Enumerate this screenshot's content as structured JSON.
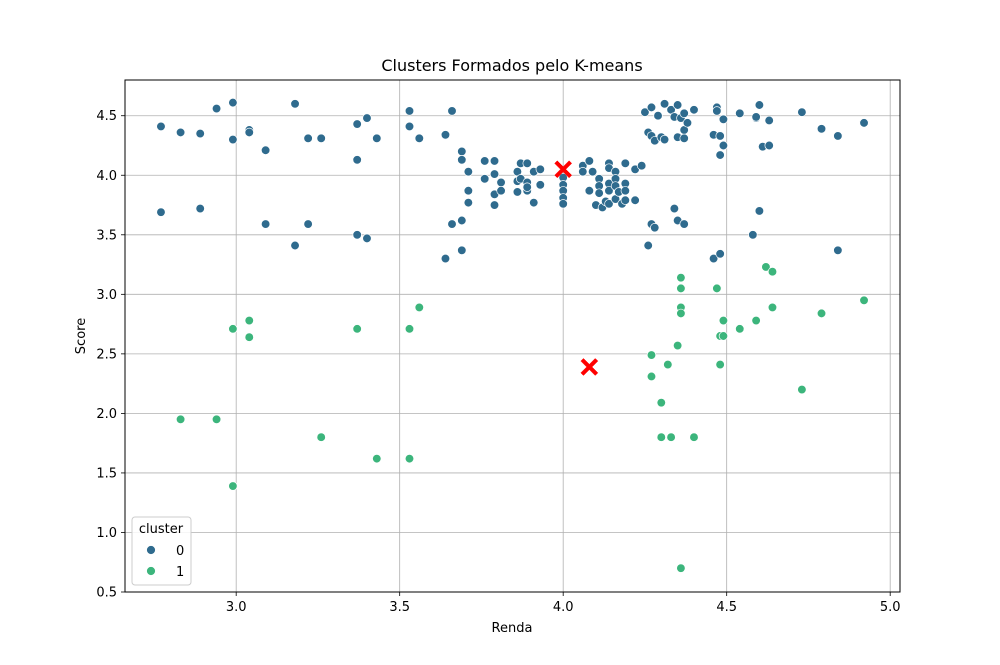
{
  "chart_data": {
    "type": "scatter",
    "title": "Clusters Formados pelo K-means",
    "xlabel": "Renda",
    "ylabel": "Score",
    "xlim": [
      2.66,
      5.03
    ],
    "ylim": [
      0.5,
      4.8
    ],
    "xticks": [
      "3.0",
      "3.5",
      "4.0",
      "4.5",
      "5.0"
    ],
    "yticks": [
      "0.5",
      "1.0",
      "1.5",
      "2.0",
      "2.5",
      "3.0",
      "3.5",
      "4.0",
      "4.5"
    ],
    "grid": true,
    "legend": {
      "title": "cluster",
      "placement": "lower-left"
    },
    "series": [
      {
        "name": "0",
        "color": "#2f6b8e",
        "points": [
          [
            2.77,
            4.41
          ],
          [
            2.83,
            4.36
          ],
          [
            2.89,
            4.35
          ],
          [
            2.94,
            4.56
          ],
          [
            2.99,
            4.61
          ],
          [
            2.99,
            4.3
          ],
          [
            3.04,
            4.38
          ],
          [
            3.04,
            4.36
          ],
          [
            3.09,
            4.21
          ],
          [
            3.18,
            4.6
          ],
          [
            3.22,
            4.31
          ],
          [
            3.26,
            4.31
          ],
          [
            3.37,
            4.43
          ],
          [
            3.4,
            4.48
          ],
          [
            3.37,
            4.13
          ],
          [
            3.43,
            4.31
          ],
          [
            3.53,
            4.54
          ],
          [
            3.53,
            4.41
          ],
          [
            3.56,
            4.31
          ],
          [
            3.64,
            4.34
          ],
          [
            3.66,
            4.54
          ],
          [
            2.77,
            3.69
          ],
          [
            2.89,
            3.72
          ],
          [
            3.09,
            3.59
          ],
          [
            3.18,
            3.41
          ],
          [
            3.22,
            3.59
          ],
          [
            3.37,
            3.5
          ],
          [
            3.4,
            3.47
          ],
          [
            3.64,
            3.3
          ],
          [
            3.66,
            3.59
          ],
          [
            3.69,
            3.62
          ],
          [
            3.69,
            3.37
          ],
          [
            3.69,
            4.2
          ],
          [
            3.69,
            4.13
          ],
          [
            3.71,
            4.03
          ],
          [
            3.71,
            3.87
          ],
          [
            3.71,
            3.77
          ],
          [
            3.76,
            4.12
          ],
          [
            3.76,
            3.97
          ],
          [
            3.79,
            4.12
          ],
          [
            3.79,
            4.01
          ],
          [
            3.79,
            3.84
          ],
          [
            3.79,
            3.75
          ],
          [
            3.81,
            3.94
          ],
          [
            3.81,
            3.87
          ],
          [
            3.86,
            4.03
          ],
          [
            3.86,
            3.95
          ],
          [
            3.86,
            3.86
          ],
          [
            3.87,
            4.1
          ],
          [
            3.87,
            3.97
          ],
          [
            3.89,
            4.1
          ],
          [
            3.89,
            3.94
          ],
          [
            3.89,
            3.87
          ],
          [
            3.89,
            3.9
          ],
          [
            3.91,
            4.03
          ],
          [
            3.91,
            3.77
          ],
          [
            3.93,
            4.05
          ],
          [
            3.93,
            3.92
          ],
          [
            4.0,
            3.98
          ],
          [
            4.0,
            3.92
          ],
          [
            4.0,
            3.87
          ],
          [
            4.0,
            3.81
          ],
          [
            4.0,
            3.76
          ],
          [
            4.06,
            4.08
          ],
          [
            4.06,
            4.03
          ],
          [
            4.08,
            4.12
          ],
          [
            4.08,
            3.87
          ],
          [
            4.09,
            4.03
          ],
          [
            4.1,
            3.75
          ],
          [
            4.11,
            3.97
          ],
          [
            4.11,
            3.91
          ],
          [
            4.11,
            3.85
          ],
          [
            4.12,
            3.73
          ],
          [
            4.13,
            3.78
          ],
          [
            4.14,
            4.1
          ],
          [
            4.14,
            4.06
          ],
          [
            4.14,
            3.93
          ],
          [
            4.14,
            3.87
          ],
          [
            4.14,
            3.76
          ],
          [
            4.16,
            4.03
          ],
          [
            4.16,
            3.97
          ],
          [
            4.16,
            3.91
          ],
          [
            4.16,
            3.8
          ],
          [
            4.17,
            3.86
          ],
          [
            4.18,
            3.76
          ],
          [
            4.19,
            4.1
          ],
          [
            4.19,
            3.93
          ],
          [
            4.19,
            3.87
          ],
          [
            4.19,
            3.79
          ],
          [
            4.22,
            4.05
          ],
          [
            4.22,
            3.79
          ],
          [
            4.24,
            4.08
          ],
          [
            4.25,
            4.53
          ],
          [
            4.26,
            4.36
          ],
          [
            4.27,
            4.57
          ],
          [
            4.27,
            4.33
          ],
          [
            4.28,
            4.29
          ],
          [
            4.29,
            4.5
          ],
          [
            4.3,
            4.32
          ],
          [
            4.31,
            4.6
          ],
          [
            4.31,
            4.3
          ],
          [
            4.33,
            4.55
          ],
          [
            4.34,
            4.49
          ],
          [
            4.35,
            4.59
          ],
          [
            4.35,
            4.32
          ],
          [
            4.36,
            4.48
          ],
          [
            4.37,
            4.52
          ],
          [
            4.37,
            4.38
          ],
          [
            4.37,
            4.31
          ],
          [
            4.38,
            4.44
          ],
          [
            4.4,
            4.55
          ],
          [
            4.46,
            4.34
          ],
          [
            4.47,
            4.57
          ],
          [
            4.47,
            4.54
          ],
          [
            4.48,
            4.33
          ],
          [
            4.48,
            4.17
          ],
          [
            4.49,
            4.47
          ],
          [
            4.49,
            4.25
          ],
          [
            4.54,
            4.52
          ],
          [
            4.59,
            4.48
          ],
          [
            4.59,
            4.49
          ],
          [
            4.6,
            4.59
          ],
          [
            4.61,
            4.24
          ],
          [
            4.63,
            4.46
          ],
          [
            4.63,
            4.25
          ],
          [
            4.73,
            4.53
          ],
          [
            4.79,
            4.39
          ],
          [
            4.84,
            4.33
          ],
          [
            4.92,
            4.44
          ],
          [
            4.26,
            3.41
          ],
          [
            4.27,
            3.59
          ],
          [
            4.28,
            3.56
          ],
          [
            4.34,
            3.72
          ],
          [
            4.35,
            3.62
          ],
          [
            4.37,
            3.59
          ],
          [
            4.46,
            3.3
          ],
          [
            4.48,
            3.34
          ],
          [
            4.58,
            3.5
          ],
          [
            4.6,
            3.7
          ],
          [
            4.84,
            3.37
          ]
        ]
      },
      {
        "name": "1",
        "color": "#3cb57c",
        "points": [
          [
            2.83,
            1.95
          ],
          [
            2.94,
            1.95
          ],
          [
            2.99,
            2.71
          ],
          [
            2.99,
            1.39
          ],
          [
            3.04,
            2.78
          ],
          [
            3.04,
            2.64
          ],
          [
            3.26,
            1.8
          ],
          [
            3.37,
            2.71
          ],
          [
            3.43,
            1.62
          ],
          [
            3.53,
            2.71
          ],
          [
            3.53,
            1.62
          ],
          [
            3.56,
            2.89
          ],
          [
            4.27,
            2.49
          ],
          [
            4.27,
            2.31
          ],
          [
            4.3,
            2.09
          ],
          [
            4.3,
            1.8
          ],
          [
            4.32,
            2.41
          ],
          [
            4.33,
            1.8
          ],
          [
            4.35,
            2.57
          ],
          [
            4.36,
            3.14
          ],
          [
            4.36,
            3.05
          ],
          [
            4.36,
            2.89
          ],
          [
            4.36,
            2.84
          ],
          [
            4.36,
            0.7
          ],
          [
            4.4,
            1.8
          ],
          [
            4.47,
            3.05
          ],
          [
            4.48,
            2.65
          ],
          [
            4.48,
            2.41
          ],
          [
            4.49,
            2.78
          ],
          [
            4.49,
            2.65
          ],
          [
            4.54,
            2.71
          ],
          [
            4.59,
            2.78
          ],
          [
            4.62,
            3.23
          ],
          [
            4.64,
            3.19
          ],
          [
            4.64,
            2.89
          ],
          [
            4.73,
            2.2
          ],
          [
            4.79,
            2.84
          ],
          [
            4.92,
            2.95
          ]
        ]
      }
    ],
    "centroids": {
      "color": "#ff0000",
      "points": [
        [
          4.0,
          4.05
        ],
        [
          4.08,
          2.39
        ]
      ]
    }
  }
}
